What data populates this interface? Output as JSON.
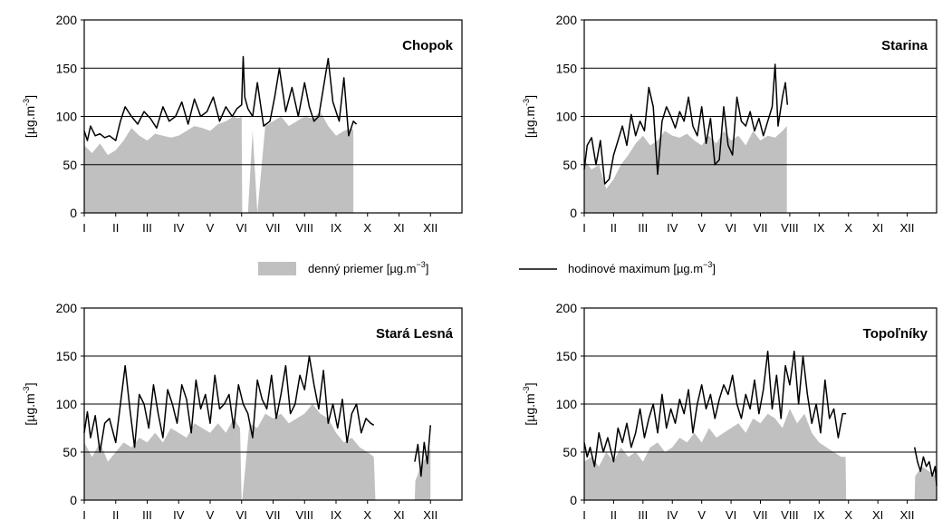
{
  "legend": {
    "area_label": "denný priemer [µg.m",
    "line_label": "hodinové maximum [µg.m",
    "exponent": "−3",
    "close": "]"
  },
  "colors": {
    "area": "#c0c0c0",
    "line": "#000000",
    "grid": "#000000"
  },
  "chart_data": [
    {
      "type": "area",
      "title": "Chopok",
      "ylabel": "[µg.m",
      "ylabel_exp": "-3",
      "ylabel_close": "]",
      "ylim": [
        0,
        200
      ],
      "yticks": [
        "0",
        "50",
        "100",
        "150",
        "200"
      ],
      "xlim": [
        0,
        12
      ],
      "month_labels": [
        "I",
        "II",
        "III",
        "IV",
        "V",
        "VI",
        "VII",
        "VIII",
        "IX",
        "X",
        "XI",
        "XII"
      ],
      "series": [
        {
          "kind": "area",
          "x": [
            0,
            0.25,
            0.5,
            0.75,
            1,
            1.25,
            1.5,
            1.75,
            2,
            2.25,
            2.5,
            2.75,
            3,
            3.25,
            3.5,
            3.75,
            4,
            4.25,
            4.5,
            4.75,
            4.9,
            5.0,
            5.02,
            5.2,
            5.35,
            5.5,
            5.75,
            6,
            6.25,
            6.5,
            6.75,
            7,
            7.25,
            7.5,
            7.75,
            8,
            8.25,
            8.5,
            8.55
          ],
          "y": [
            70,
            62,
            72,
            60,
            65,
            75,
            88,
            80,
            75,
            82,
            80,
            78,
            80,
            85,
            90,
            88,
            85,
            92,
            95,
            100,
            98,
            100,
            0,
            0,
            85,
            0,
            90,
            95,
            100,
            90,
            95,
            100,
            98,
            105,
            90,
            80,
            85,
            88,
            85
          ]
        },
        {
          "kind": "line",
          "x": [
            0,
            0.1,
            0.2,
            0.35,
            0.5,
            0.65,
            0.8,
            1,
            1.15,
            1.3,
            1.5,
            1.7,
            1.9,
            2.1,
            2.3,
            2.5,
            2.7,
            2.9,
            3.1,
            3.3,
            3.5,
            3.7,
            3.9,
            4.1,
            4.3,
            4.5,
            4.7,
            4.85,
            5.0,
            5.05,
            5.1,
            5.2,
            5.35,
            5.5,
            5.7,
            5.9,
            6.05,
            6.2,
            6.4,
            6.6,
            6.8,
            7.0,
            7.15,
            7.3,
            7.45,
            7.6,
            7.75,
            7.9,
            8.1,
            8.25,
            8.4,
            8.55,
            8.65
          ],
          "y": [
            85,
            75,
            90,
            80,
            82,
            78,
            80,
            75,
            95,
            110,
            100,
            92,
            105,
            98,
            88,
            110,
            95,
            100,
            115,
            92,
            118,
            100,
            105,
            120,
            95,
            110,
            100,
            108,
            112,
            162,
            120,
            108,
            100,
            135,
            90,
            95,
            120,
            150,
            105,
            130,
            100,
            135,
            110,
            95,
            100,
            130,
            160,
            115,
            95,
            140,
            80,
            95,
            92
          ]
        }
      ]
    },
    {
      "type": "area",
      "title": "Starina",
      "ylabel": "[µg.m",
      "ylabel_exp": "-3",
      "ylabel_close": "]",
      "ylim": [
        0,
        200
      ],
      "yticks": [
        "0",
        "50",
        "100",
        "150",
        "200"
      ],
      "xlim": [
        0,
        12
      ],
      "month_labels": [
        "I",
        "II",
        "III",
        "IV",
        "V",
        "VI",
        "VII",
        "VIII",
        "IX",
        "X",
        "XI",
        "XII"
      ],
      "series": [
        {
          "kind": "area",
          "x": [
            0,
            0.25,
            0.5,
            0.75,
            1,
            1.25,
            1.5,
            1.75,
            2,
            2.25,
            2.5,
            2.75,
            3,
            3.25,
            3.5,
            3.75,
            4,
            4.25,
            4.5,
            4.75,
            5,
            5.25,
            5.5,
            5.75,
            6,
            6.25,
            6.5,
            6.75,
            6.9
          ],
          "y": [
            55,
            45,
            50,
            25,
            35,
            50,
            60,
            72,
            80,
            70,
            75,
            85,
            80,
            78,
            82,
            75,
            70,
            80,
            72,
            85,
            75,
            80,
            70,
            85,
            75,
            80,
            78,
            85,
            90
          ]
        },
        {
          "kind": "line",
          "x": [
            0,
            0.1,
            0.25,
            0.4,
            0.55,
            0.7,
            0.85,
            1,
            1.15,
            1.3,
            1.45,
            1.6,
            1.75,
            1.9,
            2.05,
            2.2,
            2.35,
            2.5,
            2.65,
            2.8,
            2.95,
            3.1,
            3.25,
            3.4,
            3.55,
            3.7,
            3.85,
            4,
            4.15,
            4.3,
            4.45,
            4.6,
            4.75,
            4.9,
            5.05,
            5.2,
            5.35,
            5.5,
            5.65,
            5.8,
            5.95,
            6.1,
            6.25,
            6.4,
            6.5,
            6.6,
            6.75,
            6.85,
            6.92
          ],
          "y": [
            45,
            70,
            78,
            50,
            75,
            30,
            35,
            60,
            75,
            90,
            70,
            102,
            80,
            95,
            85,
            130,
            110,
            40,
            95,
            110,
            100,
            88,
            105,
            95,
            120,
            90,
            80,
            110,
            72,
            98,
            50,
            55,
            110,
            70,
            60,
            120,
            95,
            90,
            105,
            85,
            98,
            80,
            95,
            110,
            154,
            90,
            120,
            135,
            112
          ]
        }
      ]
    },
    {
      "type": "area",
      "title": "Stará Lesná",
      "ylabel": "[µg.m",
      "ylabel_exp": "-3",
      "ylabel_close": "]",
      "ylim": [
        0,
        200
      ],
      "yticks": [
        "0",
        "50",
        "100",
        "150",
        "200"
      ],
      "xlim": [
        0,
        12
      ],
      "month_labels": [
        "I",
        "II",
        "III",
        "IV",
        "V",
        "VI",
        "VII",
        "VIII",
        "IX",
        "X",
        "XI",
        "XII"
      ],
      "series": [
        {
          "kind": "area",
          "x": [
            0,
            0.25,
            0.5,
            0.75,
            1,
            1.25,
            1.5,
            1.75,
            2,
            2.25,
            2.5,
            2.75,
            3,
            3.25,
            3.5,
            3.75,
            4,
            4.25,
            4.5,
            4.75,
            4.95,
            5.0,
            5.02,
            5.25,
            5.5,
            5.75,
            6,
            6.25,
            6.5,
            6.75,
            7,
            7.25,
            7.5,
            7.75,
            8,
            8.25,
            8.5,
            8.75,
            9,
            9.2,
            9.25,
            10.5,
            10.52,
            10.75,
            10.9,
            11.0
          ],
          "y": [
            60,
            45,
            60,
            40,
            50,
            60,
            55,
            65,
            60,
            70,
            60,
            75,
            70,
            65,
            80,
            75,
            70,
            80,
            70,
            85,
            75,
            0,
            0,
            80,
            75,
            90,
            85,
            90,
            80,
            85,
            90,
            100,
            90,
            85,
            70,
            60,
            65,
            55,
            50,
            45,
            0,
            0,
            20,
            40,
            45,
            55
          ]
        },
        {
          "kind": "line",
          "x": [
            0,
            0.1,
            0.2,
            0.35,
            0.5,
            0.65,
            0.8,
            1,
            1.15,
            1.3,
            1.45,
            1.6,
            1.75,
            1.9,
            2.05,
            2.2,
            2.35,
            2.5,
            2.65,
            2.8,
            2.95,
            3.1,
            3.25,
            3.4,
            3.55,
            3.7,
            3.85,
            4,
            4.15,
            4.3,
            4.45,
            4.6,
            4.75,
            4.9,
            5.05,
            5.2,
            5.35,
            5.5,
            5.65,
            5.8,
            5.95,
            6.1,
            6.25,
            6.4,
            6.55,
            6.7,
            6.85,
            7.0,
            7.15,
            7.3,
            7.45,
            7.6,
            7.75,
            7.9,
            8.05,
            8.2,
            8.35,
            8.5,
            8.65,
            8.8,
            8.95,
            9.1,
            9.2
          ],
          "y": [
            70,
            92,
            65,
            88,
            50,
            80,
            85,
            60,
            100,
            140,
            95,
            55,
            110,
            100,
            75,
            120,
            90,
            65,
            115,
            100,
            80,
            120,
            105,
            70,
            125,
            95,
            110,
            80,
            130,
            95,
            100,
            110,
            75,
            120,
            100,
            90,
            65,
            125,
            105,
            95,
            130,
            85,
            110,
            140,
            90,
            100,
            130,
            115,
            150,
            120,
            95,
            135,
            80,
            100,
            75,
            105,
            60,
            90,
            100,
            70,
            85,
            80,
            78
          ]
        },
        {
          "kind": "line",
          "x": [
            10.5,
            10.6,
            10.7,
            10.8,
            10.9,
            11.0
          ],
          "y": [
            40,
            58,
            25,
            60,
            38,
            78
          ]
        }
      ]
    },
    {
      "type": "area",
      "title": "Topoľníky",
      "ylabel": "[µg.m",
      "ylabel_exp": "-3",
      "ylabel_close": "]",
      "ylim": [
        0,
        200
      ],
      "yticks": [
        "0",
        "50",
        "100",
        "150",
        "200"
      ],
      "xlim": [
        0,
        12
      ],
      "month_labels": [
        "I",
        "II",
        "III",
        "IV",
        "V",
        "VI",
        "VII",
        "VIII",
        "IX",
        "X",
        "XI",
        "XII"
      ],
      "series": [
        {
          "kind": "area",
          "x": [
            0,
            0.25,
            0.5,
            0.75,
            1,
            1.25,
            1.5,
            1.75,
            2,
            2.25,
            2.5,
            2.75,
            3,
            3.25,
            3.5,
            3.75,
            4,
            4.25,
            4.5,
            4.75,
            5,
            5.25,
            5.5,
            5.75,
            6,
            6.25,
            6.5,
            6.75,
            7,
            7.25,
            7.5,
            7.75,
            8,
            8.25,
            8.5,
            8.75,
            8.9,
            8.92,
            11.25,
            11.27,
            11.5,
            11.75,
            12
          ],
          "y": [
            40,
            45,
            35,
            50,
            40,
            55,
            45,
            50,
            40,
            55,
            60,
            50,
            55,
            65,
            60,
            70,
            60,
            75,
            65,
            70,
            75,
            80,
            70,
            85,
            80,
            90,
            85,
            75,
            95,
            80,
            90,
            70,
            60,
            55,
            50,
            45,
            45,
            0,
            0,
            25,
            35,
            30,
            25
          ]
        },
        {
          "kind": "line",
          "x": [
            0,
            0.1,
            0.2,
            0.35,
            0.5,
            0.65,
            0.8,
            1,
            1.15,
            1.3,
            1.45,
            1.6,
            1.75,
            1.9,
            2.05,
            2.2,
            2.35,
            2.5,
            2.65,
            2.8,
            2.95,
            3.1,
            3.25,
            3.4,
            3.55,
            3.7,
            3.85,
            4,
            4.15,
            4.3,
            4.45,
            4.6,
            4.75,
            4.9,
            5.05,
            5.2,
            5.35,
            5.5,
            5.65,
            5.8,
            5.95,
            6.1,
            6.25,
            6.4,
            6.55,
            6.7,
            6.85,
            7.0,
            7.15,
            7.3,
            7.45,
            7.6,
            7.75,
            7.9,
            8.05,
            8.2,
            8.35,
            8.5,
            8.65,
            8.8,
            8.92
          ],
          "y": [
            60,
            45,
            55,
            35,
            70,
            50,
            65,
            40,
            75,
            60,
            80,
            55,
            70,
            95,
            65,
            85,
            100,
            70,
            110,
            75,
            95,
            80,
            105,
            90,
            115,
            70,
            100,
            120,
            95,
            110,
            85,
            105,
            120,
            110,
            130,
            100,
            85,
            110,
            95,
            125,
            90,
            115,
            155,
            95,
            130,
            85,
            140,
            120,
            155,
            100,
            150,
            110,
            80,
            100,
            70,
            125,
            85,
            95,
            65,
            90,
            90
          ]
        },
        {
          "kind": "line",
          "x": [
            11.25,
            11.35,
            11.45,
            11.55,
            11.65,
            11.75,
            11.85,
            11.95,
            12
          ],
          "y": [
            55,
            40,
            30,
            45,
            35,
            40,
            25,
            35,
            15
          ]
        }
      ]
    }
  ]
}
